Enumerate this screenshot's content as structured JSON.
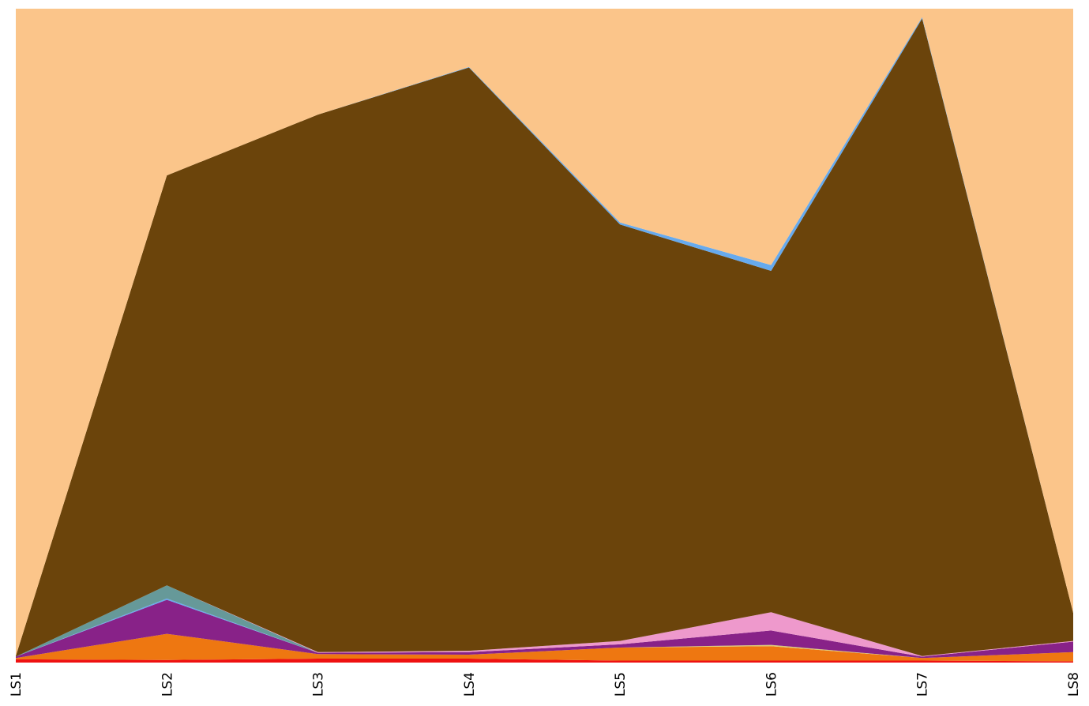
{
  "chart_data": {
    "type": "area",
    "stacked": true,
    "normalized": true,
    "categories": [
      "LS1",
      "LS2",
      "LS3",
      "LS4",
      "LS5",
      "LS6",
      "LS7",
      "LS8"
    ],
    "title": "",
    "xlabel": "",
    "ylabel": "",
    "ylim": [
      0,
      1
    ],
    "grid": false,
    "legend": "none",
    "series": [
      {
        "color": "#ee1111",
        "values": [
          0.005,
          0.004,
          0.006,
          0.006,
          0.003,
          0.003,
          0.003,
          0.002
        ]
      },
      {
        "color": "#ee7711",
        "values": [
          0.002,
          0.04,
          0.007,
          0.006,
          0.02,
          0.022,
          0.004,
          0.014
        ]
      },
      {
        "color": "#ddcc77",
        "values": [
          0.0,
          0.0,
          0.0,
          0.0,
          0.0,
          0.002,
          0.0,
          0.0
        ]
      },
      {
        "color": "#882288",
        "values": [
          0.002,
          0.052,
          0.002,
          0.004,
          0.005,
          0.022,
          0.002,
          0.016
        ]
      },
      {
        "color": "#66aaee",
        "values": [
          0.0,
          0.002,
          0.0,
          0.0,
          0.0,
          0.0,
          0.0,
          0.0
        ]
      },
      {
        "color": "#669999",
        "values": [
          0.0,
          0.02,
          0.0,
          0.0,
          0.0,
          0.0,
          0.0,
          0.0
        ]
      },
      {
        "color": "#ee99cc",
        "values": [
          0.0,
          0.0,
          0.001,
          0.002,
          0.005,
          0.028,
          0.001,
          0.001
        ]
      },
      {
        "color": "#6b440b",
        "values": [
          0.001,
          0.627,
          0.822,
          0.892,
          0.637,
          0.522,
          0.975,
          0.043
        ]
      },
      {
        "color": "#66aaee",
        "values": [
          0.0,
          0.0,
          0.0,
          0.001,
          0.003,
          0.009,
          0.002,
          0.0
        ]
      },
      {
        "color": "#fbc58a",
        "values": [
          0.99,
          0.255,
          0.162,
          0.089,
          0.327,
          0.392,
          0.013,
          0.924
        ]
      }
    ]
  }
}
